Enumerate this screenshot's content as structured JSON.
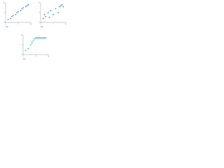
{
  "chart_data": [
    {
      "type": "scatter",
      "caption": "(a)",
      "color": "#3a8fd0",
      "x": [
        1,
        2,
        2.5,
        3,
        4,
        4.5,
        5,
        6,
        6.5,
        7,
        8,
        8.5,
        9
      ],
      "values": [
        1.5,
        2,
        3,
        3.5,
        4,
        5,
        5.5,
        6,
        7,
        7.5,
        8,
        8.5,
        9
      ],
      "xlim": [
        0,
        10
      ],
      "ylim": [
        0,
        10
      ],
      "xticks": [
        0,
        5,
        10
      ],
      "yticks": [
        0,
        5,
        10
      ]
    },
    {
      "type": "scatter",
      "caption": "(b)",
      "color": "#3a8fd0",
      "x": [
        1,
        1.5,
        2,
        3,
        3.5,
        4,
        5,
        6,
        7,
        7.5,
        8,
        8.5,
        9
      ],
      "values": [
        2,
        4,
        3,
        5,
        2.5,
        6,
        4,
        7,
        5,
        8,
        8.5,
        9,
        8
      ],
      "xlim": [
        0,
        10
      ],
      "ylim": [
        0,
        10
      ],
      "xticks": [
        0,
        5,
        10
      ],
      "yticks": [
        0,
        5,
        10
      ]
    },
    {
      "type": "scatter",
      "caption": "(c)",
      "color": "#3ab0e0",
      "x": [
        1,
        2,
        3,
        3.5,
        4,
        4.5,
        5,
        5.5,
        6,
        6.5,
        7,
        7.5,
        8,
        8.5,
        9
      ],
      "values": [
        2,
        3,
        5,
        6,
        7,
        8,
        8.5,
        8.5,
        8.5,
        8.5,
        8.5,
        8.5,
        8.5,
        8.5,
        8.5
      ],
      "xlim": [
        0,
        10
      ],
      "ylim": [
        0,
        10
      ],
      "xticks": [
        0,
        5,
        10
      ],
      "yticks": [
        0,
        5,
        10
      ]
    }
  ]
}
